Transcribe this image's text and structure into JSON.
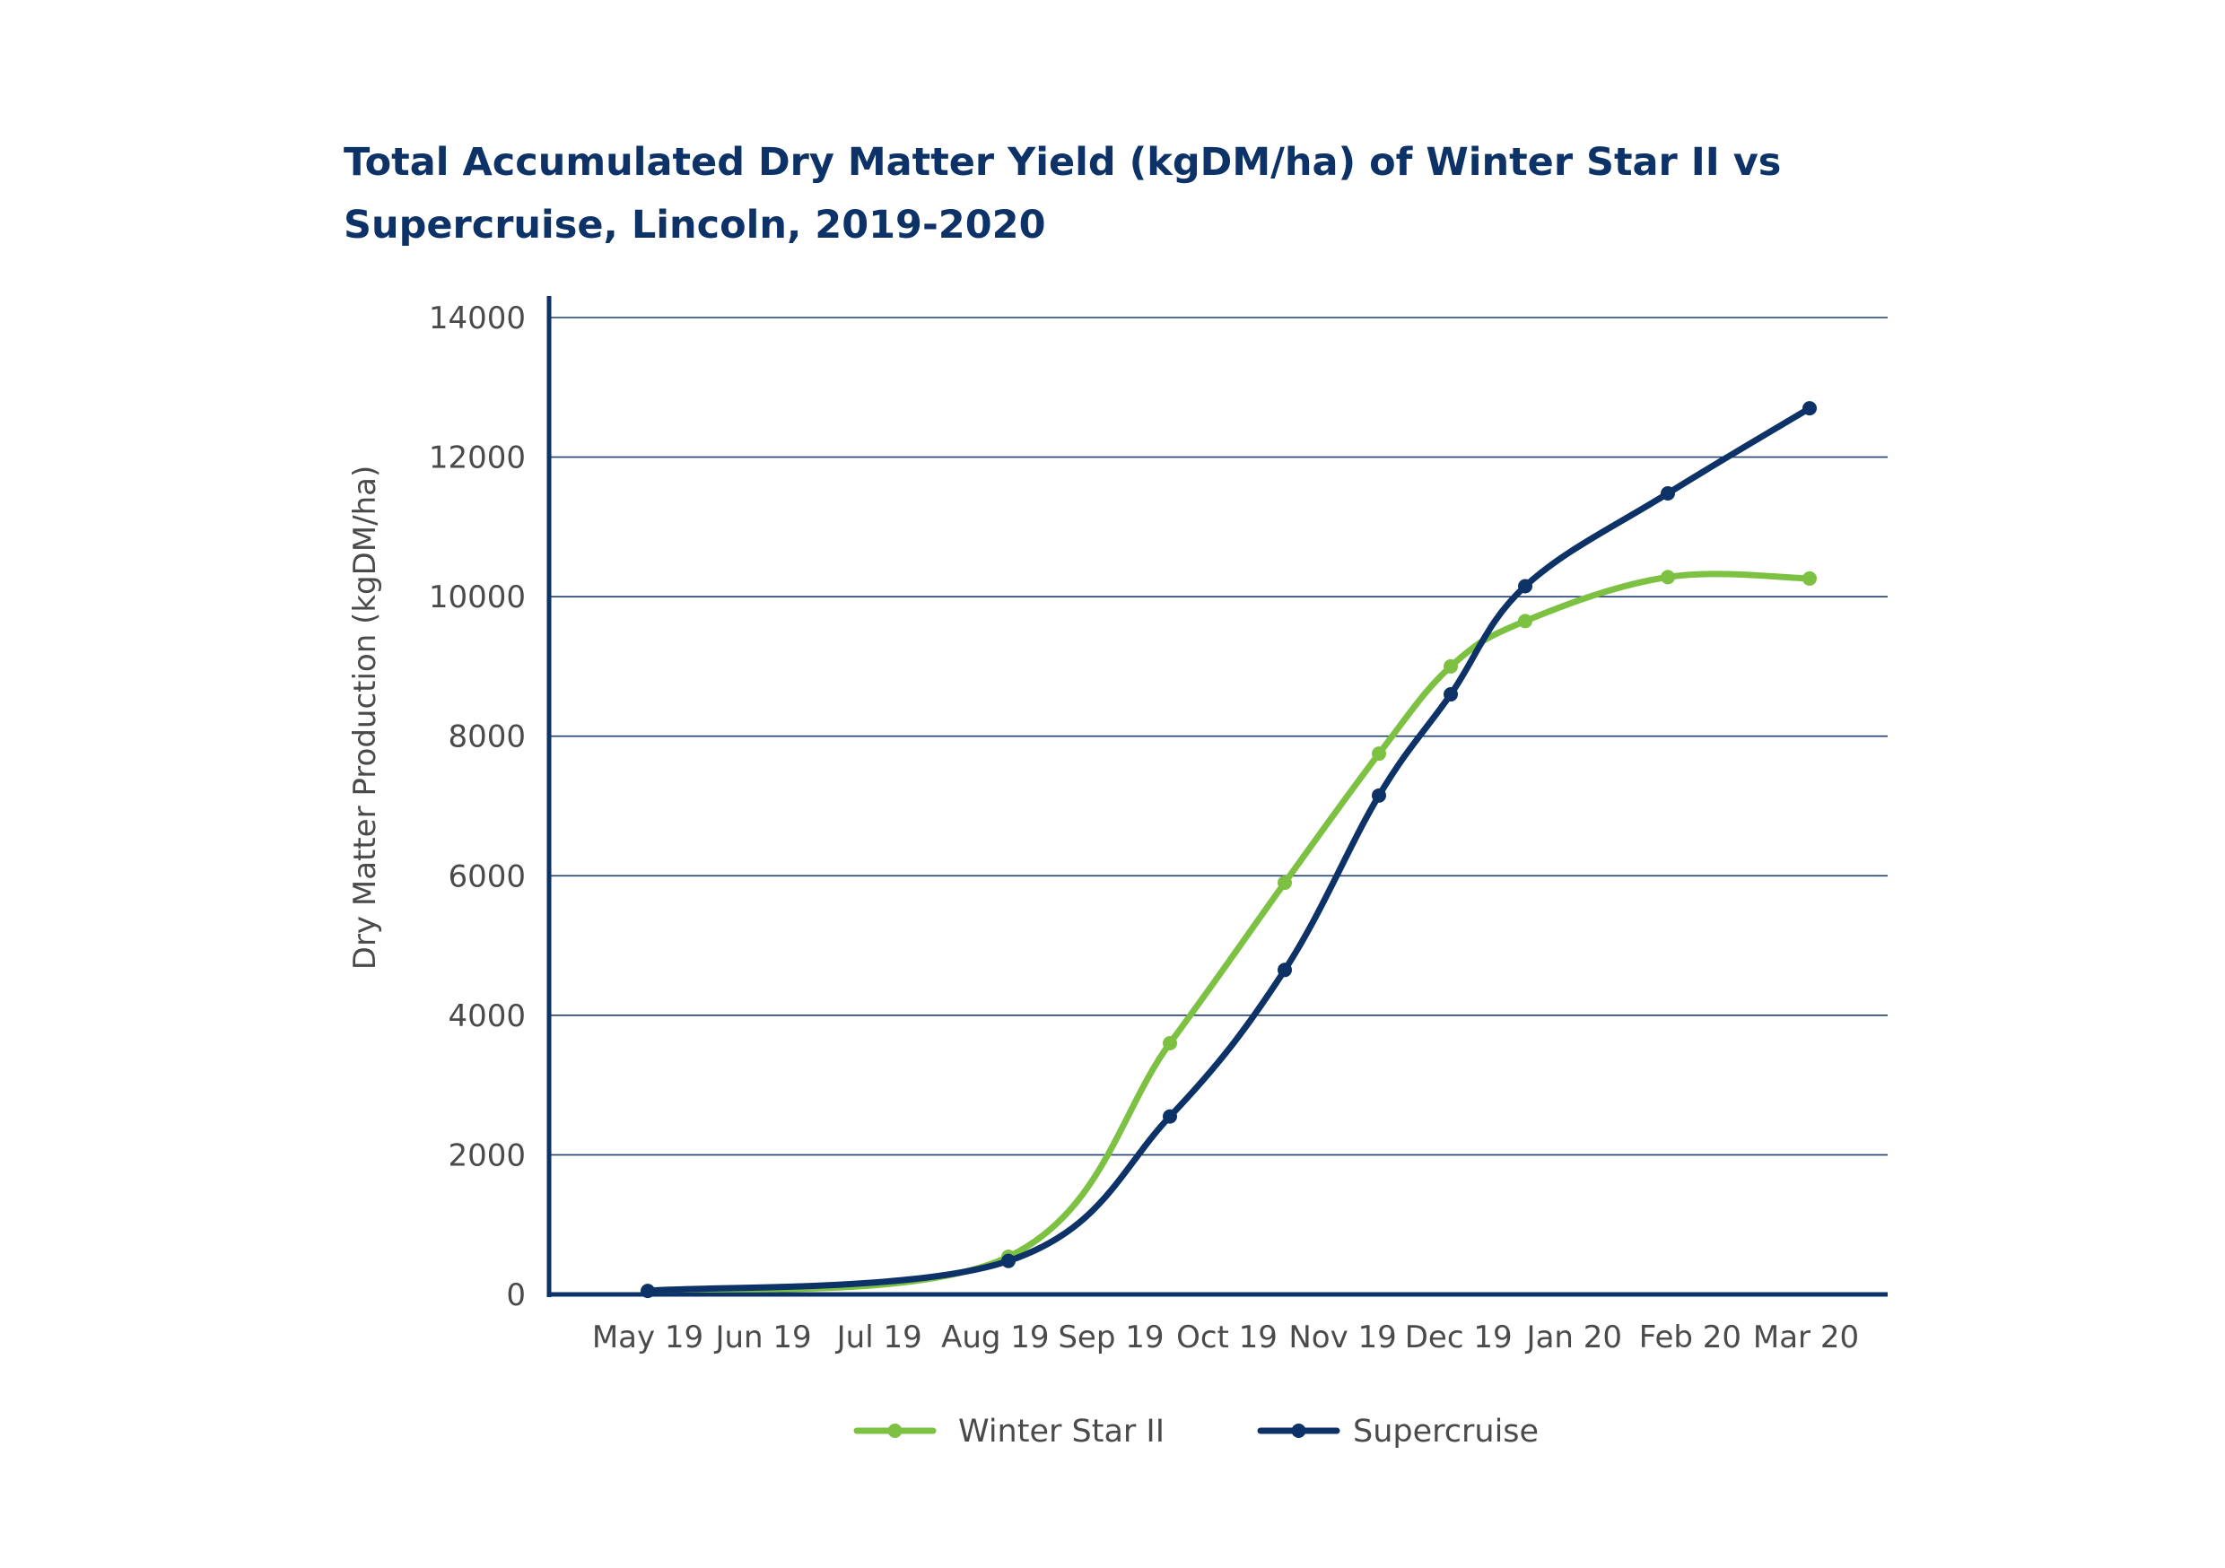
{
  "chart_data": {
    "type": "line",
    "title": "Total Accumulated Dry Matter Yield (kgDM/ha) of Winter Star II vs Supercruise, Lincoln, 2019-2020",
    "xlabel": "",
    "ylabel": "Dry Matter Production (kgDM/ha)",
    "ylim": [
      0,
      14000
    ],
    "yticks": [
      0,
      2000,
      4000,
      6000,
      8000,
      10000,
      12000,
      14000
    ],
    "x_categories": [
      "May 19",
      "Jun 19",
      "Jul 19",
      "Aug 19",
      "Sep 19",
      "Oct 19",
      "Nov 19",
      "Dec 19",
      "Jan 20",
      "Feb 20",
      "Mar 20"
    ],
    "grid": true,
    "legend_position": "bottom",
    "series": [
      {
        "name": "Winter Star II",
        "color": "#7dc142",
        "points": [
          {
            "x": "May 19",
            "y": 50
          },
          {
            "x": "Aug 19",
            "y": 540
          },
          {
            "x": "mid Sep 19",
            "y": 3600
          },
          {
            "x": "early Oct 19",
            "y": 5900
          },
          {
            "x": "Nov 19",
            "y": 7750
          },
          {
            "x": "early Dec 19",
            "y": 9000
          },
          {
            "x": "early Jan 20",
            "y": 9650
          },
          {
            "x": "Feb 20",
            "y": 10280
          },
          {
            "x": "Mar 20",
            "y": 10260
          }
        ]
      },
      {
        "name": "Supercruise",
        "color": "#0c3267",
        "points": [
          {
            "x": "May 19",
            "y": 50
          },
          {
            "x": "Aug 19",
            "y": 480
          },
          {
            "x": "mid Sep 19",
            "y": 2550
          },
          {
            "x": "early Oct 19",
            "y": 4650
          },
          {
            "x": "Nov 19",
            "y": 7150
          },
          {
            "x": "early Dec 19",
            "y": 8600
          },
          {
            "x": "early Jan 20",
            "y": 10150
          },
          {
            "x": "Feb 20",
            "y": 11480
          },
          {
            "x": "Mar 20",
            "y": 12700
          }
        ]
      }
    ]
  }
}
